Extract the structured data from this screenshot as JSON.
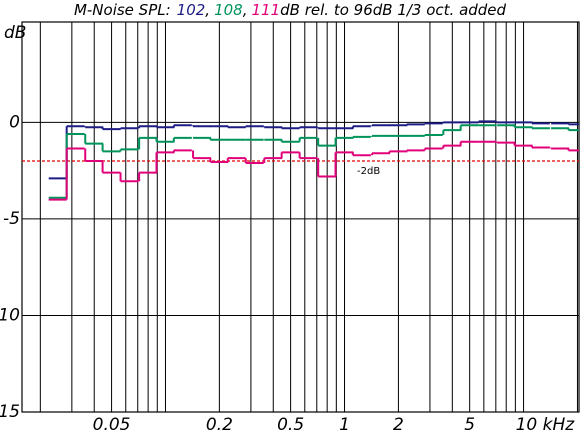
{
  "chart_data": {
    "type": "step",
    "title": {
      "prefix": "M-Noise SPL:",
      "separator": ",",
      "suffix": "dB rel. to 96dB 1/3 oct. added"
    },
    "y_label": "dB",
    "log_x": true,
    "grid": true,
    "x": [
      0.025,
      0.0315,
      0.04,
      0.05,
      0.063,
      0.08,
      0.1,
      0.125,
      0.16,
      0.2,
      0.25,
      0.315,
      0.4,
      0.5,
      0.63,
      0.8,
      1,
      1.25,
      1.6,
      2,
      2.5,
      3.15,
      4,
      5,
      6.3,
      8,
      10,
      12.5,
      16,
      20
    ],
    "series": [
      {
        "name": "102",
        "color": "#1c1c84",
        "values": [
          -2.9,
          -0.2,
          -0.25,
          -0.35,
          -0.3,
          -0.2,
          -0.25,
          -0.15,
          -0.2,
          -0.2,
          -0.25,
          -0.2,
          -0.25,
          -0.3,
          -0.25,
          -0.3,
          -0.3,
          -0.2,
          -0.15,
          -0.15,
          -0.1,
          -0.05,
          0,
          0,
          0.05,
          0,
          0,
          -0.05,
          -0.05,
          -0.1
        ]
      },
      {
        "name": "108",
        "color": "#00935a",
        "values": [
          -3.9,
          -0.6,
          -1.1,
          -1.5,
          -1.4,
          -0.8,
          -1.0,
          -0.8,
          -0.8,
          -0.9,
          -0.9,
          -0.9,
          -0.9,
          -1.0,
          -0.8,
          -1.2,
          -0.8,
          -0.75,
          -0.7,
          -0.7,
          -0.7,
          -0.65,
          -0.4,
          -0.15,
          -0.15,
          -0.15,
          -0.25,
          -0.3,
          -0.3,
          -0.4
        ]
      },
      {
        "name": "111",
        "color": "#e0007a",
        "values": [
          -4.0,
          -1.35,
          -2.0,
          -2.6,
          -3.05,
          -2.6,
          -1.55,
          -1.45,
          -1.85,
          -2.05,
          -1.85,
          -2.1,
          -1.85,
          -1.55,
          -1.85,
          -2.8,
          -1.55,
          -1.7,
          -1.6,
          -1.5,
          -1.45,
          -1.35,
          -1.2,
          -1.0,
          -1.0,
          -1.05,
          -1.2,
          -1.3,
          -1.35,
          -1.45
        ]
      }
    ],
    "reference": {
      "value": -2,
      "label": "-2dB",
      "color": "#e00000"
    },
    "xlim": [
      0.0158,
      20.4
    ],
    "ylim": [
      -15,
      5.2
    ],
    "yticks": [
      0,
      -5,
      -10,
      -15
    ],
    "xticks": [
      0.05,
      0.2,
      0.5,
      1,
      2,
      5,
      {
        "value": 10,
        "label": "10 kHz"
      }
    ],
    "xgrid": [
      0.02,
      0.03,
      0.04,
      0.05,
      0.06,
      0.07,
      0.08,
      0.09,
      0.1,
      0.2,
      0.3,
      0.4,
      0.5,
      0.6,
      0.7,
      0.8,
      0.9,
      1,
      2,
      3,
      4,
      5,
      6,
      7,
      8,
      9,
      10,
      20
    ]
  }
}
